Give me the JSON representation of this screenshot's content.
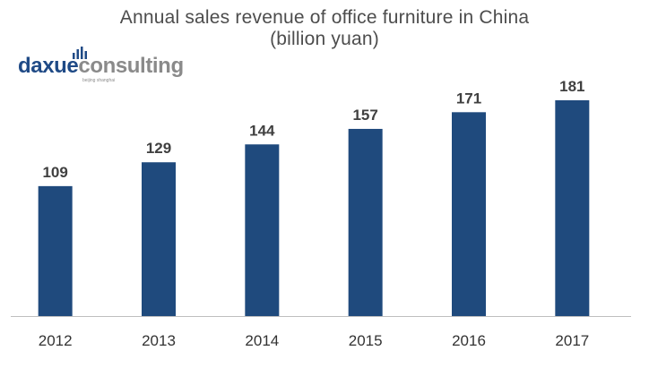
{
  "header": {
    "title_line1": "Annual sales revenue of office furniture in China",
    "title_line2": "(billion yuan)"
  },
  "logo": {
    "part1": "daxue",
    "part2": "consulting",
    "tagline": "beijing shanghai",
    "colors": {
      "part1": "#1f4a86",
      "part2": "#8a8a8a",
      "bars": "#1f4a86"
    }
  },
  "chart_data": {
    "type": "bar",
    "title": "Annual sales revenue of office furniture in China",
    "subtitle": "(billion yuan)",
    "categories": [
      "2012",
      "2013",
      "2014",
      "2015",
      "2016",
      "2017"
    ],
    "values": [
      109,
      129,
      144,
      157,
      171,
      181
    ],
    "data_labels": [
      "109",
      "129",
      "144",
      "157",
      "171",
      "181"
    ],
    "xlabel": "",
    "ylabel": "",
    "ylim": [
      0,
      181
    ],
    "grid": false,
    "legend": "none",
    "bar_color": "#1f4a7d",
    "axis_color": "#bfbfbf"
  }
}
